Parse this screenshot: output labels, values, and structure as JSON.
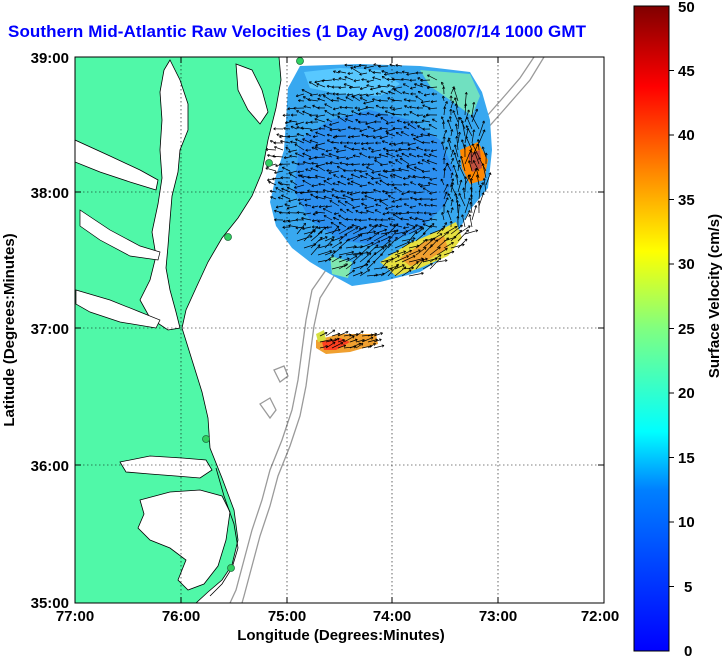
{
  "title": "Southern Mid-Atlantic Raw Velocities (1 Day Avg) 2008/07/14 1000 GMT",
  "map": {
    "x_axis": {
      "label": "Longitude (Degrees:Minutes)",
      "ticks": [
        "77:00",
        "76:00",
        "75:00",
        "74:00",
        "73:00",
        "72:00"
      ]
    },
    "y_axis": {
      "label": "Latitude (Degrees:Minutes)",
      "ticks": [
        "39:00",
        "38:00",
        "37:00",
        "36:00",
        "35:00"
      ]
    },
    "colors": {
      "land": "#50f8a8",
      "ocean": "#ffffff",
      "bathymetry": "#9a9a9a",
      "coast": "#000000"
    }
  },
  "colorbar": {
    "label": "Surface Velocity (cm/s)",
    "ticks": [
      "50",
      "45",
      "40",
      "35",
      "30",
      "25",
      "20",
      "15",
      "10",
      "5",
      "0"
    ],
    "range": [
      0,
      50
    ],
    "colormap": "jet"
  },
  "chart_data": {
    "type": "heatmap",
    "extent": {
      "lon": [
        -77,
        -72
      ],
      "lat": [
        35,
        39
      ]
    },
    "fields": [
      {
        "region": "main-coverage",
        "approx_lon": [
          -75.0,
          -72.9
        ],
        "approx_lat": [
          37.55,
          38.95
        ],
        "speed_cm_s_range": [
          0,
          35
        ]
      },
      {
        "region": "southern-patch",
        "approx_lon": [
          -74.75,
          -74.15
        ],
        "approx_lat": [
          36.65,
          36.75
        ],
        "speed_cm_s_range": [
          15,
          35
        ]
      }
    ]
  }
}
